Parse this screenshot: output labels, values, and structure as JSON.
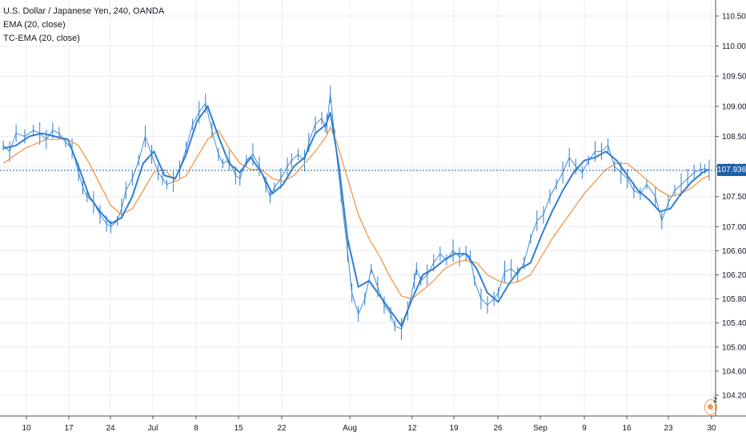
{
  "chart_data": {
    "type": "line",
    "title": "U.S. Dollar / Japanese Yen, 240, OANDA",
    "indicators": [
      "EMA (20, close)",
      "TC-EMA (20, close)"
    ],
    "y_axis": {
      "position": "right",
      "ylim": [
        103.7,
        110.7
      ],
      "tick_labels": [
        "110.500",
        "110.000",
        "109.500",
        "109.000",
        "108.500",
        "108.000",
        "107.500",
        "107.000",
        "106.600",
        "106.200",
        "105.800",
        "105.400",
        "105.000",
        "104.600",
        "104.200"
      ]
    },
    "x_axis": {
      "tick_labels": [
        "10",
        "17",
        "24",
        "Jul",
        "8",
        "15",
        "22",
        "Aug",
        "12",
        "19",
        "26",
        "Sep",
        "9",
        "16",
        "23",
        "30"
      ]
    },
    "last_price": "107.936",
    "last_price_value": 107.936,
    "event_marker_count": "2",
    "series": [
      {
        "name": "USD/JPY",
        "color": "#2f7fd0",
        "x": [
          0.0,
          1.5,
          3.0,
          5.0,
          7.0,
          8.5,
          10.0,
          11.5,
          13.0,
          14.5,
          16.0,
          17.5,
          18.5,
          19.5,
          21.0,
          22.5,
          24.0,
          25.0,
          26.5,
          27.5,
          28.5,
          30.0,
          31.5,
          33.0,
          34.5,
          36.0,
          37.0,
          38.0,
          39.5,
          41.0,
          42.5,
          44.0,
          45.5,
          47.0,
          48.5,
          50.0,
          51.0,
          52.5,
          54.0,
          55.0,
          56.5,
          58.0,
          59.5,
          61.0,
          62.0,
          63.0,
          64.5,
          66.0,
          67.0,
          68.5,
          70.0,
          71.0,
          72.5,
          74.0,
          74.8,
          75.2,
          76.0,
          77.0,
          78.5,
          80.0,
          81.0,
          82.5,
          84.0,
          85.5,
          87.0,
          88.5,
          90.0,
          91.0,
          92.5,
          94.0,
          95.5,
          96.0,
          97.0,
          98.5,
          100.0,
          101.5,
          103.0,
          104.5,
          106.0,
          107.5,
          108.5,
          109.5,
          111.0,
          112.5,
          114.0,
          115.0,
          116.5,
          118.0,
          119.5,
          121.0,
          122.5,
          124.0,
          125.5,
          127.0,
          128.5,
          130.0,
          131.5,
          133.0,
          134.5,
          136.0,
          137.5,
          139.0,
          140.5,
          142.0,
          143.5,
          145.0,
          146.5,
          148.0,
          149.5,
          151.5,
          153.0,
          154.5,
          156.0,
          157.5,
          159.0,
          160.5,
          162.0,
          163.0,
          164.0
        ],
        "y": [
          108.35,
          108.25,
          108.55,
          108.5,
          108.6,
          108.55,
          108.45,
          108.6,
          108.55,
          108.4,
          108.3,
          107.9,
          107.65,
          107.5,
          107.4,
          107.2,
          107.05,
          107.0,
          107.1,
          107.3,
          107.6,
          107.8,
          108.1,
          108.5,
          108.2,
          107.9,
          107.8,
          107.7,
          107.75,
          107.95,
          108.3,
          108.7,
          108.9,
          109.05,
          108.6,
          108.2,
          108.05,
          108.1,
          107.85,
          107.8,
          108.1,
          108.2,
          108.0,
          107.7,
          107.5,
          107.65,
          107.8,
          108.0,
          108.1,
          108.2,
          108.1,
          108.4,
          108.7,
          108.8,
          108.65,
          108.7,
          109.2,
          108.5,
          107.5,
          106.6,
          105.9,
          105.55,
          105.8,
          106.3,
          106.0,
          105.7,
          105.55,
          105.35,
          105.3,
          105.6,
          106.1,
          106.3,
          106.1,
          106.2,
          106.4,
          106.55,
          106.45,
          106.6,
          106.5,
          106.55,
          106.5,
          106.1,
          105.8,
          105.7,
          105.8,
          105.9,
          106.25,
          106.3,
          106.2,
          106.4,
          106.8,
          107.1,
          107.2,
          107.5,
          107.7,
          107.9,
          108.15,
          108.0,
          107.9,
          108.1,
          108.25,
          108.25,
          108.35,
          108.0,
          107.9,
          107.8,
          107.6,
          107.55,
          107.7,
          107.5,
          107.1,
          107.4,
          107.6,
          107.7,
          107.8,
          107.9,
          107.95,
          107.96,
          107.94
        ]
      },
      {
        "name": "EMA (20, close)",
        "color": "#f58d39",
        "x": [
          0.0,
          5.0,
          10.0,
          15.0,
          17.5,
          20.0,
          22.5,
          25.0,
          27.5,
          30.0,
          32.5,
          35.0,
          37.5,
          40.0,
          42.5,
          45.0,
          47.5,
          50.0,
          52.5,
          55.0,
          57.5,
          60.0,
          62.5,
          65.0,
          67.5,
          70.0,
          72.5,
          75.0,
          76.0,
          77.5,
          80.0,
          82.5,
          85.0,
          87.5,
          90.0,
          92.5,
          95.0,
          97.5,
          100.0,
          102.5,
          105.0,
          107.5,
          110.0,
          112.5,
          115.0,
          117.5,
          120.0,
          122.5,
          125.0,
          127.5,
          130.0,
          132.5,
          135.0,
          137.5,
          140.0,
          142.5,
          145.0,
          147.5,
          150.0,
          152.5,
          155.0,
          157.5,
          160.0,
          162.5,
          164.0
        ],
        "y": [
          108.05,
          108.3,
          108.45,
          108.45,
          108.35,
          108.05,
          107.7,
          107.35,
          107.2,
          107.3,
          107.6,
          107.9,
          107.95,
          107.75,
          107.85,
          108.15,
          108.45,
          108.6,
          108.3,
          108.05,
          107.95,
          107.95,
          107.8,
          107.75,
          107.85,
          108.05,
          108.25,
          108.5,
          108.65,
          108.4,
          107.8,
          107.2,
          106.8,
          106.5,
          106.15,
          105.85,
          105.8,
          105.95,
          106.1,
          106.3,
          106.4,
          106.45,
          106.4,
          106.2,
          106.1,
          106.05,
          106.1,
          106.2,
          106.5,
          106.8,
          107.05,
          107.3,
          107.55,
          107.75,
          107.95,
          108.05,
          108.05,
          107.9,
          107.75,
          107.6,
          107.5,
          107.55,
          107.65,
          107.8,
          107.85
        ]
      },
      {
        "name": "TC-EMA (20, close)",
        "color": "#2f7fd0",
        "x": [
          0.0,
          3.0,
          6.0,
          9.0,
          12.0,
          15.0,
          17.5,
          20.0,
          22.5,
          25.0,
          27.5,
          30.0,
          32.5,
          35.0,
          37.5,
          40.0,
          42.5,
          45.0,
          47.5,
          50.0,
          52.5,
          55.0,
          57.5,
          60.0,
          62.5,
          65.0,
          67.5,
          70.0,
          72.5,
          75.0,
          76.0,
          78.0,
          80.0,
          82.5,
          85.0,
          87.5,
          90.0,
          92.5,
          95.0,
          97.5,
          100.0,
          102.5,
          105.0,
          107.5,
          110.0,
          112.5,
          115.0,
          117.5,
          120.0,
          122.5,
          125.0,
          127.5,
          130.0,
          132.5,
          135.0,
          137.5,
          140.0,
          142.5,
          145.0,
          147.5,
          150.0,
          152.5,
          155.0,
          157.5,
          160.0,
          162.5,
          164.0
        ],
        "y": [
          108.3,
          108.35,
          108.5,
          108.55,
          108.5,
          108.45,
          108.0,
          107.5,
          107.25,
          107.05,
          107.15,
          107.5,
          108.05,
          108.25,
          107.85,
          107.8,
          108.2,
          108.75,
          109.0,
          108.5,
          108.05,
          107.9,
          108.15,
          107.9,
          107.55,
          107.7,
          108.0,
          108.15,
          108.55,
          108.7,
          108.9,
          108.0,
          106.8,
          106.0,
          106.1,
          105.85,
          105.6,
          105.35,
          105.8,
          106.2,
          106.3,
          106.45,
          106.55,
          106.55,
          106.3,
          105.9,
          105.75,
          106.05,
          106.3,
          106.4,
          106.85,
          107.25,
          107.6,
          107.9,
          108.1,
          108.15,
          108.25,
          108.1,
          107.85,
          107.6,
          107.45,
          107.25,
          107.3,
          107.55,
          107.75,
          107.9,
          107.95
        ]
      }
    ],
    "grid": true,
    "legend": "top-left",
    "colors": {
      "price": "#2f7fd0",
      "ema": "#f58d39",
      "last_price_badge": "#1f5fa8",
      "grid": "#e9ecf2",
      "axis_text": "#131722",
      "event_marker": "#f59b52"
    }
  }
}
